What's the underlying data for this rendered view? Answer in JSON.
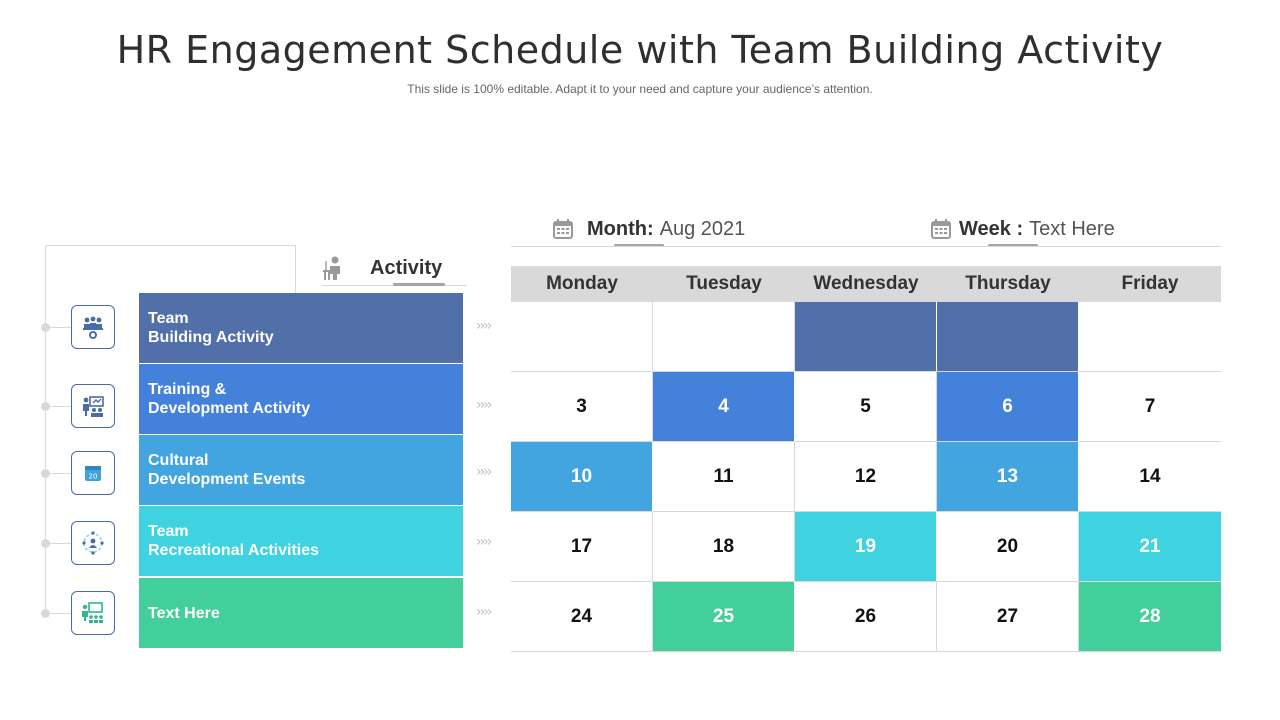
{
  "title": "HR Engagement Schedule with Team Building Activity",
  "subtitle": "This slide is 100% editable. Adapt it to your need and capture your audience’s attention.",
  "header": {
    "month_label": "Month:",
    "month_value": "Aug 2021",
    "week_label": "Week :",
    "week_value": "Text Here",
    "activity_label": "Activity"
  },
  "colors": {
    "team_building": "#5170aa",
    "training": "#4481db",
    "cultural": "#43a5df",
    "recreational": "#3fd3e1",
    "text_here": "#42cf9c"
  },
  "activities": [
    {
      "line1": "Team",
      "line2": "Building Activity",
      "icon": "team-meeting-icon"
    },
    {
      "line1": "Training &",
      "line2": "Development Activity",
      "icon": "presentation-icon"
    },
    {
      "line1": "Cultural",
      "line2": "Development Events",
      "icon": "calendar-icon"
    },
    {
      "line1": "Team",
      "line2": "Recreational Activities",
      "icon": "team-circle-icon"
    },
    {
      "line1": "Text Here",
      "line2": "",
      "icon": "classroom-icon"
    }
  ],
  "calendar": {
    "days": [
      "Monday",
      "Tuesday",
      "Wednesday",
      "Thursday",
      "Friday"
    ],
    "rows": [
      [
        "",
        "",
        "",
        "",
        ""
      ],
      [
        "3",
        "4",
        "5",
        "6",
        "7"
      ],
      [
        "10",
        "11",
        "12",
        "13",
        "14"
      ],
      [
        "17",
        "18",
        "19",
        "20",
        "21"
      ],
      [
        "24",
        "25",
        "26",
        "27",
        "28"
      ]
    ]
  }
}
